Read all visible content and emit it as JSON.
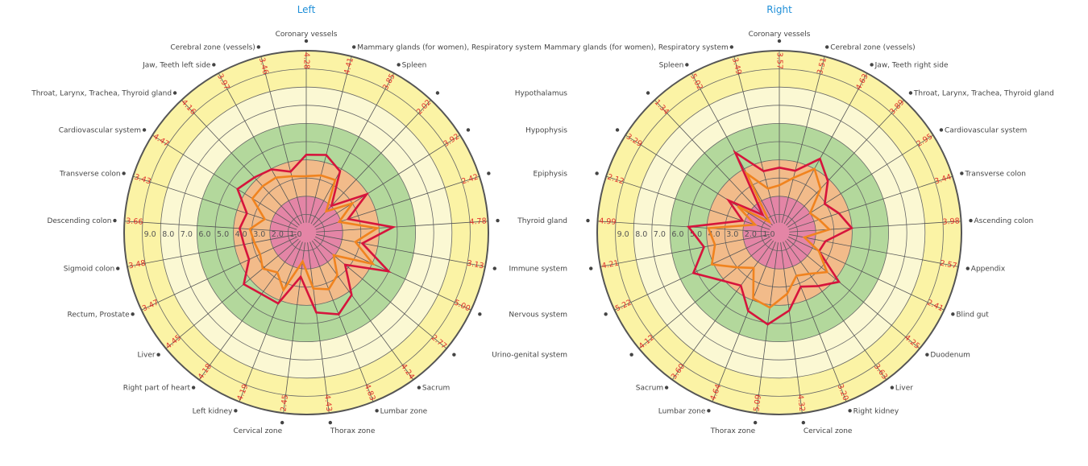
{
  "chart_data": [
    {
      "type": "radar",
      "title": "Left",
      "range": [
        0,
        10
      ],
      "radial_ticks": [
        "1.0",
        "2.0",
        "3.0",
        "4.0",
        "5.0",
        "6.0",
        "7.0",
        "8.0",
        "9.0"
      ],
      "bands": [
        {
          "from": 0,
          "to": 2,
          "color": "#e485a6"
        },
        {
          "from": 2,
          "to": 4,
          "color": "#f2bb8a"
        },
        {
          "from": 4,
          "to": 6,
          "color": "#b3d89c"
        },
        {
          "from": 6,
          "to": 8,
          "color": "#fbf8d3"
        },
        {
          "from": 8,
          "to": 10,
          "color": "#fbf3a5"
        }
      ],
      "axes": [
        "Coronary vessels",
        "Mammary glands (for women), Respiratory system",
        "Spleen",
        "Hypothalamus",
        "Hypophysis",
        "Epiphysis",
        "Thyroid gland",
        "Immune system",
        "Nervous system",
        "Urino-genital system",
        "Sacrum",
        "Lumbar zone",
        "Thorax zone",
        "Cervical zone",
        "Left kidney",
        "Right part of heart",
        "Liver",
        "Rectum, Prostate",
        "Sigmoid colon",
        "Descending colon",
        "Transverse colon",
        "Cardiovascular system",
        "Throat, Larynx, Trachea, Thyroid gland",
        "Jaw, Teeth left side",
        "Cerebral zone (vessels)"
      ],
      "value_labels": [
        "4.28",
        "4.41",
        "3.85",
        "2.02",
        "3.92",
        "2.42",
        "4.78",
        "3.13",
        "5.00",
        "2.77",
        "4.24",
        "4.83",
        "4.43",
        "2.45",
        "4.19",
        "4.18",
        "4.45",
        "3.47",
        "3.48",
        "3.66",
        "3.43",
        "4.47",
        "4.16",
        "3.97",
        "3.46"
      ],
      "series": [
        {
          "name": "red",
          "color": "#d6143c",
          "values": [
            4.28,
            4.41,
            3.85,
            2.02,
            3.92,
            2.42,
            4.78,
            3.13,
            5.0,
            2.77,
            4.24,
            4.83,
            4.43,
            2.45,
            4.19,
            4.18,
            4.45,
            3.47,
            3.48,
            3.66,
            3.43,
            4.47,
            4.16,
            3.97,
            3.46
          ]
        },
        {
          "name": "orange",
          "color": "#f0831f",
          "values": [
            3.1,
            3.25,
            3.3,
            1.6,
            3.0,
            1.9,
            3.9,
            2.75,
            4.05,
            1.95,
            2.9,
            3.35,
            3.1,
            1.6,
            3.4,
            2.7,
            3.1,
            2.8,
            2.9,
            3.1,
            2.4,
            3.5,
            3.5,
            3.45,
            3.2
          ]
        }
      ]
    },
    {
      "type": "radar",
      "title": "Right",
      "range": [
        0,
        10
      ],
      "radial_ticks": [
        "1.0",
        "2.0",
        "3.0",
        "4.0",
        "5.0",
        "6.0",
        "7.0",
        "8.0",
        "9.0"
      ],
      "bands": [
        {
          "from": 0,
          "to": 2,
          "color": "#e485a6"
        },
        {
          "from": 2,
          "to": 4,
          "color": "#f2bb8a"
        },
        {
          "from": 4,
          "to": 6,
          "color": "#b3d89c"
        },
        {
          "from": 6,
          "to": 8,
          "color": "#fbf8d3"
        },
        {
          "from": 8,
          "to": 10,
          "color": "#fbf3a5"
        }
      ],
      "axes": [
        "Coronary vessels",
        "Cerebral zone (vessels)",
        "Jaw, Teeth right side",
        "Throat, Larynx, Trachea, Thyroid gland",
        "Cardiovascular system",
        "Transverse colon",
        "Ascending colon",
        "Appendix",
        "Blind gut",
        "Duodenum",
        "Liver",
        "Right kidney",
        "Cervical zone",
        "Thorax zone",
        "Lumbar zone",
        "Sacrum",
        "",
        "",
        "",
        "",
        "",
        "",
        "",
        "Spleen",
        "Mammary glands (for women), Respiratory system"
      ],
      "value_labels": [
        "3.57",
        "3.51",
        "4.63",
        "3.89",
        "2.95",
        "3.44",
        "3.98",
        "2.57",
        "2.41",
        "4.25",
        "3.63",
        "3.20",
        "4.32",
        "5.09",
        "4.64",
        "3.60",
        "4.12",
        "5.22",
        "4.21",
        "4.99",
        "2.12",
        "3.29",
        "1.34",
        "5.02",
        "3.49"
      ],
      "series": [
        {
          "name": "red",
          "color": "#d6143c",
          "values": [
            3.57,
            3.51,
            4.63,
            3.89,
            2.95,
            3.44,
            3.98,
            2.57,
            2.41,
            4.25,
            3.63,
            3.2,
            4.32,
            5.09,
            4.64,
            3.6,
            4.12,
            5.22,
            4.21,
            4.99,
            2.12,
            3.29,
            1.34,
            5.02,
            3.49
          ]
        },
        {
          "name": "orange",
          "color": "#f0831f",
          "values": [
            2.6,
            3.1,
            4.0,
            3.3,
            2.0,
            2.3,
            2.75,
            1.4,
            2.4,
            3.4,
            2.8,
            2.55,
            3.4,
            4.15,
            3.9,
            2.4,
            3.0,
            4.1,
            3.6,
            3.9,
            1.4,
            2.7,
            0.8,
            3.7,
            2.5
          ]
        }
      ]
    }
  ]
}
